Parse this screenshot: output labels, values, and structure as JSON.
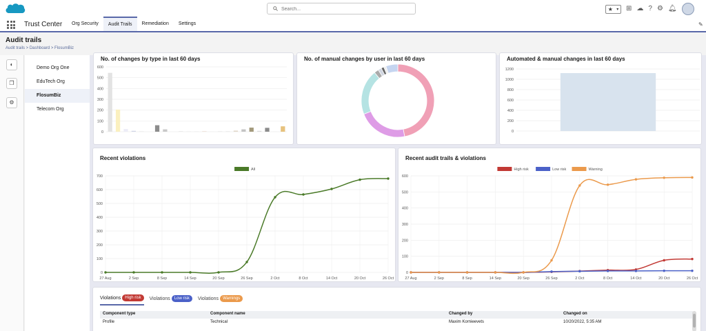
{
  "header": {
    "search_placeholder": "Search...",
    "icons": [
      "star-icon",
      "chevron-down-icon",
      "plus-icon",
      "cloud-icon",
      "question-icon",
      "gear-icon",
      "bell-icon",
      "avatar-icon"
    ]
  },
  "nav": {
    "app_name": "Trust Center",
    "tabs": [
      "Org Security",
      "Audit Trails",
      "Remediation",
      "Settings"
    ],
    "active_tab": "Audit Trails"
  },
  "page": {
    "title": "Audit trails",
    "breadcrumb": "Audit trails > Dashboard > FlosumBiz"
  },
  "orgs": {
    "items": [
      "Demo Org One",
      "EduTech Org",
      "FlosumBiz",
      "Telecom Org"
    ],
    "active": "FlosumBiz"
  },
  "cards": {
    "changes_by_type": "No. of changes by type in last 60 days",
    "manual_by_user": "No. of manual changes by user in last 60 days",
    "auto_manual": "Automated & manual changes in last 60 days",
    "recent_violations": "Recent violations",
    "audit_trails_violations": "Recent audit trails & violations"
  },
  "colors": {
    "accent": "#5867a8",
    "all": "#4a7a28",
    "high": "#c23934",
    "low": "#4b61c8",
    "warning": "#eb9a4c"
  },
  "chart_data": [
    {
      "type": "bar",
      "title": "No. of changes by type in last 60 days",
      "y_ticks": [
        "0",
        "100",
        "200",
        "300",
        "400",
        "500",
        "600"
      ],
      "ylim": [
        0,
        600
      ],
      "values": [
        545,
        205,
        25,
        8,
        4,
        0,
        60,
        22,
        0,
        3,
        4,
        2,
        4,
        3,
        3,
        2,
        10,
        22,
        38,
        8,
        36,
        2,
        50
      ],
      "colors": [
        "#e3e3e3",
        "#fbf0bf",
        "#ededf7",
        "#cfd3e6",
        "#e6e6e6",
        "#eeeeee",
        "#8c8c8c",
        "#c8c8c8",
        "#eeeeee",
        "#d8d8d8",
        "#ececec",
        "#e2e2e2",
        "#e6d3c6",
        "#eeeeee",
        "#dedede",
        "#d0d0d0",
        "#e1d7c9",
        "#c4c4c4",
        "#a39a7c",
        "#dadada",
        "#8b8b8b",
        "#e8e8e8",
        "#e7c27e"
      ]
    },
    {
      "type": "pie",
      "title": "No. of manual changes by user in last 60 days",
      "donut": true,
      "values": [
        47,
        22,
        20,
        2,
        1.5,
        1.2,
        1,
        5.3
      ],
      "colors": [
        "#f0a0b6",
        "#de9ce6",
        "#b5e3e3",
        "#aaaaaa",
        "#d0d5e0",
        "#666666",
        "#eeeeee",
        "#c5d5f0"
      ]
    },
    {
      "type": "bar",
      "title": "Automated & manual changes in last 60 days",
      "y_ticks": [
        "0",
        "200",
        "400",
        "600",
        "800",
        "1000",
        "1200"
      ],
      "ylim": [
        0,
        1200
      ],
      "values": [
        1120
      ],
      "colors": [
        "#d8e3ee"
      ]
    },
    {
      "type": "line",
      "title": "Recent violations",
      "x_ticks": [
        "27 Aug",
        "2 Sep",
        "8 Sep",
        "14 Sep",
        "20 Sep",
        "26 Sep",
        "2 Oct",
        "8 Oct",
        "14 Oct",
        "20 Oct",
        "26 Oct"
      ],
      "y_ticks": [
        "0",
        "100",
        "200",
        "300",
        "400",
        "500",
        "600",
        "700"
      ],
      "ylim": [
        0,
        700
      ],
      "series": [
        {
          "name": "All",
          "color": "#4a7a28",
          "values": [
            0,
            0,
            0,
            0,
            0,
            75,
            545,
            565,
            605,
            672,
            680
          ]
        }
      ]
    },
    {
      "type": "line",
      "title": "Recent audit trails & violations",
      "x_ticks": [
        "27 Aug",
        "2 Sep",
        "8 Sep",
        "14 Sep",
        "20 Sep",
        "26 Sep",
        "2 Oct",
        "8 Oct",
        "14 Oct",
        "20 Oct",
        "26 Oct"
      ],
      "y_ticks": [
        "0",
        "100",
        "200",
        "300",
        "400",
        "500",
        "600"
      ],
      "ylim": [
        0,
        600
      ],
      "series": [
        {
          "name": "High risk",
          "color": "#c23934",
          "values": [
            0,
            0,
            0,
            0,
            0,
            3,
            8,
            14,
            18,
            75,
            83
          ]
        },
        {
          "name": "Low risk",
          "color": "#4b61c8",
          "values": [
            0,
            0,
            0,
            0,
            0,
            5,
            7,
            9,
            9,
            10,
            10
          ]
        },
        {
          "name": "Warning",
          "color": "#eb9a4c",
          "values": [
            0,
            0,
            0,
            0,
            0,
            75,
            540,
            545,
            578,
            588,
            590
          ]
        }
      ]
    }
  ],
  "violations_table": {
    "tabs": [
      {
        "label": "Violations",
        "badge": "High risk",
        "badge_color": "#c23934"
      },
      {
        "label": "Violations",
        "badge": "Low risk",
        "badge_color": "#4b61c8"
      },
      {
        "label": "Violations",
        "badge": "Warnings",
        "badge_color": "#eb9a4c"
      }
    ],
    "columns": [
      "Component type",
      "Component name",
      "Changed by",
      "Changed on"
    ],
    "rows": [
      [
        "Profile",
        "Technical",
        "Maxim Kornieevets",
        "10/20/2022, 5:35 AM"
      ]
    ]
  }
}
